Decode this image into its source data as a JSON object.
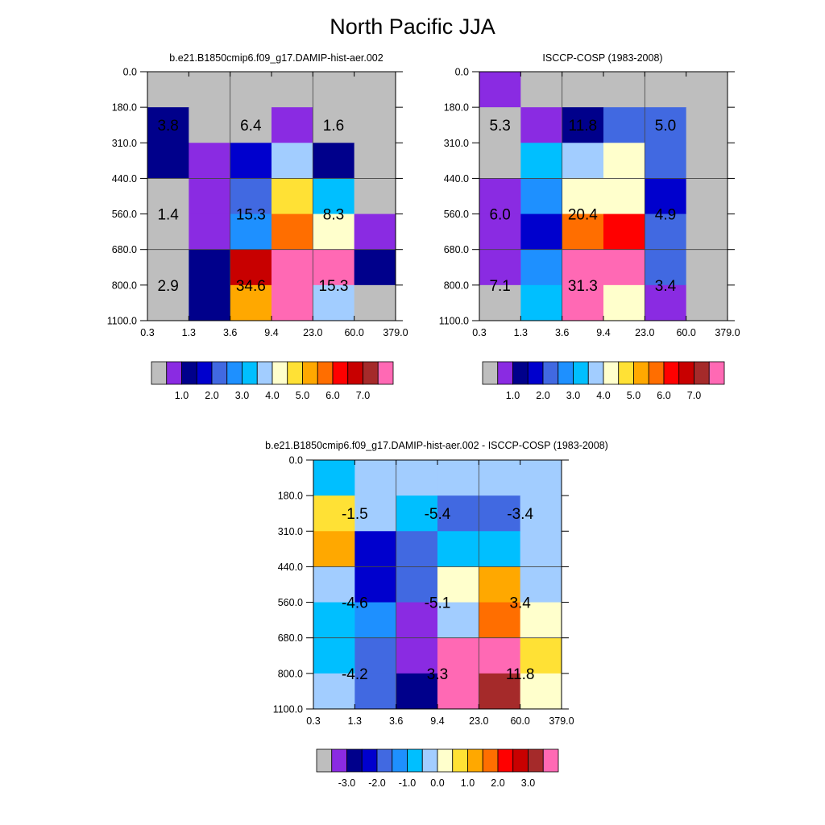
{
  "title": "North Pacific JJA",
  "chart_data": [
    {
      "type": "heatmap",
      "title": "b.e21.B1850cmip6.f09_g17.DAMIP-hist-aer.002",
      "x_ticks": [
        "0.3",
        "1.3",
        "3.6",
        "9.4",
        "23.0",
        "60.0",
        "379.0"
      ],
      "y_ticks": [
        "0.0",
        "180.0",
        "310.0",
        "440.0",
        "560.0",
        "680.0",
        "800.0",
        "1100.0"
      ],
      "cell_colors": [
        [
          "#BEBEBE",
          "#BEBEBE",
          "#BEBEBE",
          "#BEBEBE",
          "#BEBEBE",
          "#BEBEBE"
        ],
        [
          "#00008B",
          "#BEBEBE",
          "#BEBEBE",
          "#8A2BE2",
          "#BEBEBE",
          "#BEBEBE"
        ],
        [
          "#00008B",
          "#8A2BE2",
          "#0000CD",
          "#A2CDFF",
          "#00008B",
          "#BEBEBE"
        ],
        [
          "#BEBEBE",
          "#8A2BE2",
          "#4169E1",
          "#FFE135",
          "#00BFFF",
          "#BEBEBE"
        ],
        [
          "#BEBEBE",
          "#8A2BE2",
          "#1E90FF",
          "#FF6E00",
          "#FFFFCC",
          "#8A2BE2"
        ],
        [
          "#BEBEBE",
          "#00008B",
          "#C80000",
          "#FF69B4",
          "#FF69B4",
          "#00008B"
        ],
        [
          "#BEBEBE",
          "#00008B",
          "#FFA800",
          "#FF69B4",
          "#A2CDFF",
          "#BEBEBE"
        ]
      ],
      "annotations": [
        {
          "value": "3.8",
          "col": 0.5,
          "row": 1.5
        },
        {
          "value": "6.4",
          "col": 2.5,
          "row": 1.5
        },
        {
          "value": "1.6",
          "col": 4.5,
          "row": 1.5
        },
        {
          "value": "1.4",
          "col": 0.5,
          "row": 4.0
        },
        {
          "value": "15.3",
          "col": 2.5,
          "row": 4.0
        },
        {
          "value": "8.3",
          "col": 4.5,
          "row": 4.0
        },
        {
          "value": "2.9",
          "col": 0.5,
          "row": 6.0
        },
        {
          "value": "34.6",
          "col": 2.5,
          "row": 6.0
        },
        {
          "value": "15.3",
          "col": 4.5,
          "row": 6.0
        }
      ],
      "colorbar": {
        "colors": [
          "#BEBEBE",
          "#8A2BE2",
          "#00008B",
          "#0000CD",
          "#4169E1",
          "#1E90FF",
          "#00BFFF",
          "#A2CDFF",
          "#FFFFCC",
          "#FFE135",
          "#FFA800",
          "#FF6E00",
          "#FF0000",
          "#C80000",
          "#A52A2A",
          "#FF69B4"
        ],
        "labels": [
          "1.0",
          "2.0",
          "3.0",
          "4.0",
          "5.0",
          "6.0",
          "7.0"
        ],
        "first_label_box": 1
      }
    },
    {
      "type": "heatmap",
      "title": "ISCCP-COSP (1983-2008)",
      "x_ticks": [
        "0.3",
        "1.3",
        "3.6",
        "9.4",
        "23.0",
        "60.0",
        "379.0"
      ],
      "y_ticks": [
        "0.0",
        "180.0",
        "310.0",
        "440.0",
        "560.0",
        "680.0",
        "800.0",
        "1100.0"
      ],
      "cell_colors": [
        [
          "#8A2BE2",
          "#BEBEBE",
          "#BEBEBE",
          "#BEBEBE",
          "#BEBEBE",
          "#BEBEBE"
        ],
        [
          "#BEBEBE",
          "#8A2BE2",
          "#00008B",
          "#4169E1",
          "#4169E1",
          "#BEBEBE"
        ],
        [
          "#BEBEBE",
          "#00BFFF",
          "#A2CDFF",
          "#FFFFCC",
          "#4169E1",
          "#BEBEBE"
        ],
        [
          "#8A2BE2",
          "#1E90FF",
          "#FFFFCC",
          "#FFFFCC",
          "#0000CD",
          "#BEBEBE"
        ],
        [
          "#8A2BE2",
          "#0000CD",
          "#FF6E00",
          "#FF0000",
          "#4169E1",
          "#BEBEBE"
        ],
        [
          "#8A2BE2",
          "#1E90FF",
          "#FF69B4",
          "#FF69B4",
          "#4169E1",
          "#BEBEBE"
        ],
        [
          "#BEBEBE",
          "#00BFFF",
          "#FF69B4",
          "#FFFFCC",
          "#8A2BE2",
          "#BEBEBE"
        ]
      ],
      "annotations": [
        {
          "value": "5.3",
          "col": 0.5,
          "row": 1.5
        },
        {
          "value": "11.8",
          "col": 2.5,
          "row": 1.5
        },
        {
          "value": "5.0",
          "col": 4.5,
          "row": 1.5
        },
        {
          "value": "6.0",
          "col": 0.5,
          "row": 4.0
        },
        {
          "value": "20.4",
          "col": 2.5,
          "row": 4.0
        },
        {
          "value": "4.9",
          "col": 4.5,
          "row": 4.0
        },
        {
          "value": "7.1",
          "col": 0.5,
          "row": 6.0
        },
        {
          "value": "31.3",
          "col": 2.5,
          "row": 6.0
        },
        {
          "value": "3.4",
          "col": 4.5,
          "row": 6.0
        }
      ],
      "colorbar": {
        "colors": [
          "#BEBEBE",
          "#8A2BE2",
          "#00008B",
          "#0000CD",
          "#4169E1",
          "#1E90FF",
          "#00BFFF",
          "#A2CDFF",
          "#FFFFCC",
          "#FFE135",
          "#FFA800",
          "#FF6E00",
          "#FF0000",
          "#C80000",
          "#A52A2A",
          "#FF69B4"
        ],
        "labels": [
          "1.0",
          "2.0",
          "3.0",
          "4.0",
          "5.0",
          "6.0",
          "7.0"
        ],
        "first_label_box": 1
      }
    },
    {
      "type": "heatmap",
      "title": "b.e21.B1850cmip6.f09_g17.DAMIP-hist-aer.002 - ISCCP-COSP (1983-2008)",
      "x_ticks": [
        "0.3",
        "1.3",
        "3.6",
        "9.4",
        "23.0",
        "60.0",
        "379.0"
      ],
      "y_ticks": [
        "0.0",
        "180.0",
        "310.0",
        "440.0",
        "560.0",
        "680.0",
        "800.0",
        "1100.0"
      ],
      "cell_colors": [
        [
          "#00BFFF",
          "#A2CDFF",
          "#A2CDFF",
          "#A2CDFF",
          "#A2CDFF",
          "#A2CDFF"
        ],
        [
          "#FFE135",
          "#A2CDFF",
          "#00BFFF",
          "#4169E1",
          "#4169E1",
          "#A2CDFF"
        ],
        [
          "#FFA800",
          "#0000CD",
          "#4169E1",
          "#00BFFF",
          "#00BFFF",
          "#A2CDFF"
        ],
        [
          "#A2CDFF",
          "#0000CD",
          "#4169E1",
          "#FFFFCC",
          "#FFA800",
          "#A2CDFF"
        ],
        [
          "#00BFFF",
          "#1E90FF",
          "#8A2BE2",
          "#A2CDFF",
          "#FF6E00",
          "#FFFFCC"
        ],
        [
          "#00BFFF",
          "#4169E1",
          "#8A2BE2",
          "#FF69B4",
          "#FF69B4",
          "#FFE135"
        ],
        [
          "#A2CDFF",
          "#4169E1",
          "#00008B",
          "#FF69B4",
          "#A52A2A",
          "#FFFFCC"
        ]
      ],
      "annotations": [
        {
          "value": "-1.5",
          "col": 1.0,
          "row": 1.5
        },
        {
          "value": "-5.4",
          "col": 3.0,
          "row": 1.5
        },
        {
          "value": "-3.4",
          "col": 5.0,
          "row": 1.5
        },
        {
          "value": "-4.6",
          "col": 1.0,
          "row": 4.0
        },
        {
          "value": "-5.1",
          "col": 3.0,
          "row": 4.0
        },
        {
          "value": "3.4",
          "col": 5.0,
          "row": 4.0
        },
        {
          "value": "-4.2",
          "col": 1.0,
          "row": 6.0
        },
        {
          "value": "3.3",
          "col": 3.0,
          "row": 6.0
        },
        {
          "value": "11.8",
          "col": 5.0,
          "row": 6.0
        }
      ],
      "colorbar": {
        "colors": [
          "#BEBEBE",
          "#8A2BE2",
          "#00008B",
          "#0000CD",
          "#4169E1",
          "#1E90FF",
          "#00BFFF",
          "#A2CDFF",
          "#FFFFCC",
          "#FFE135",
          "#FFA800",
          "#FF6E00",
          "#FF0000",
          "#C80000",
          "#A52A2A",
          "#FF69B4"
        ],
        "labels": [
          "-3.0",
          "-2.0",
          "-1.0",
          "0.0",
          "1.0",
          "2.0",
          "3.0"
        ],
        "first_label_box": 1
      }
    }
  ]
}
